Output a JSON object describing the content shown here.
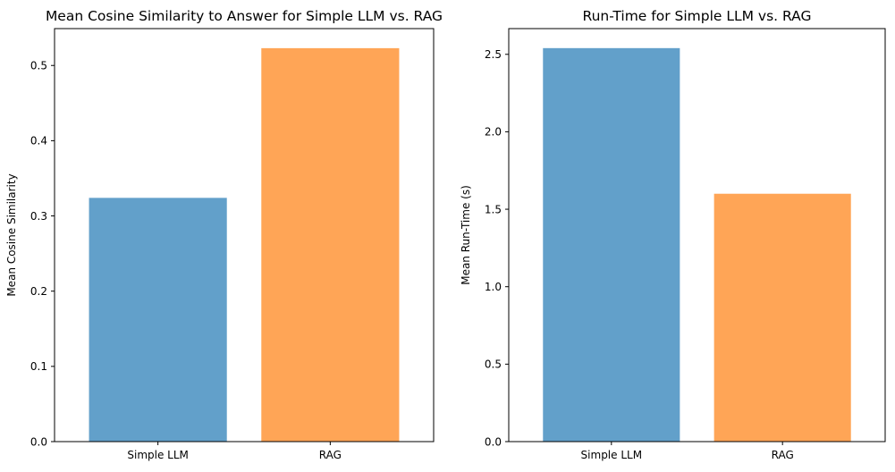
{
  "chart_data": [
    {
      "type": "bar",
      "title": "Mean Cosine Similarity to Answer for Simple LLM vs. RAG",
      "xlabel": "",
      "ylabel": "Mean Cosine Similarity",
      "categories": [
        "Simple LLM",
        "RAG"
      ],
      "values": [
        0.324,
        0.523
      ],
      "colors": [
        "#1f77b4",
        "#ff7f0e"
      ],
      "bar_opacity": 0.7,
      "ylim": [
        0,
        0.549
      ],
      "yticks": [
        0.0,
        0.1,
        0.2,
        0.3,
        0.4,
        0.5
      ],
      "ytick_labels": [
        "0.0",
        "0.1",
        "0.2",
        "0.3",
        "0.4",
        "0.5"
      ],
      "grid": false,
      "legend": "none"
    },
    {
      "type": "bar",
      "title": "Run-Time for Simple LLM vs. RAG",
      "xlabel": "",
      "ylabel": "Mean Run-Time (s)",
      "categories": [
        "Simple LLM",
        "RAG"
      ],
      "values": [
        2.54,
        1.6
      ],
      "colors": [
        "#1f77b4",
        "#ff7f0e"
      ],
      "bar_opacity": 0.7,
      "ylim": [
        0,
        2.666
      ],
      "yticks": [
        0.0,
        0.5,
        1.0,
        1.5,
        2.0,
        2.5
      ],
      "ytick_labels": [
        "0.0",
        "0.5",
        "1.0",
        "1.5",
        "2.0",
        "2.5"
      ],
      "grid": false,
      "legend": "none"
    }
  ]
}
